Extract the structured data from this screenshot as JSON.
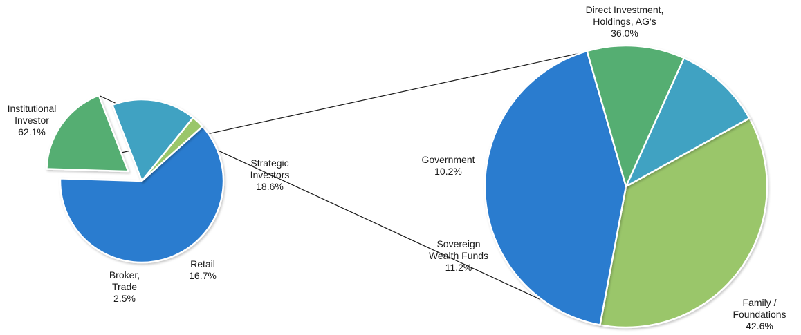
{
  "chart_data": [
    {
      "type": "pie",
      "slices": [
        {
          "name": "Institutional Investor",
          "label_lines": [
            "Institutional",
            "Investor",
            "62.1%"
          ],
          "value": 62.1,
          "color": "#2b7ccf",
          "exploded": false
        },
        {
          "name": "Strategic Investors",
          "label_lines": [
            "Strategic",
            "Investors",
            "18.6%"
          ],
          "value": 18.6,
          "color": "#55ae72",
          "exploded": true
        },
        {
          "name": "Retail",
          "label_lines": [
            "Retail",
            "16.7%"
          ],
          "value": 16.7,
          "color": "#41a2c2",
          "exploded": false
        },
        {
          "name": "Broker, Trade",
          "label_lines": [
            "Broker,",
            "Trade",
            "2.5%"
          ],
          "value": 2.5,
          "color": "#9ac66a",
          "exploded": false
        }
      ]
    },
    {
      "type": "pie",
      "breakdown_of": "Strategic Investors",
      "slices": [
        {
          "name": "Direct Investment, Holdings, AG's",
          "label_lines": [
            "Direct Investment,",
            "Holdings, AG's",
            "36.0%"
          ],
          "value": 36.0,
          "color": "#9ac66a"
        },
        {
          "name": "Family / Foundations",
          "label_lines": [
            "Family /",
            "Foundations",
            "42.6%"
          ],
          "value": 42.6,
          "color": "#2b7ccf"
        },
        {
          "name": "Sovereign Wealth Funds",
          "label_lines": [
            "Sovereign",
            "Wealth Funds",
            "11.2%"
          ],
          "value": 11.2,
          "color": "#55ae72"
        },
        {
          "name": "Government",
          "label_lines": [
            "Government",
            "10.2%"
          ],
          "value": 10.2,
          "color": "#41a2c2"
        }
      ]
    }
  ]
}
